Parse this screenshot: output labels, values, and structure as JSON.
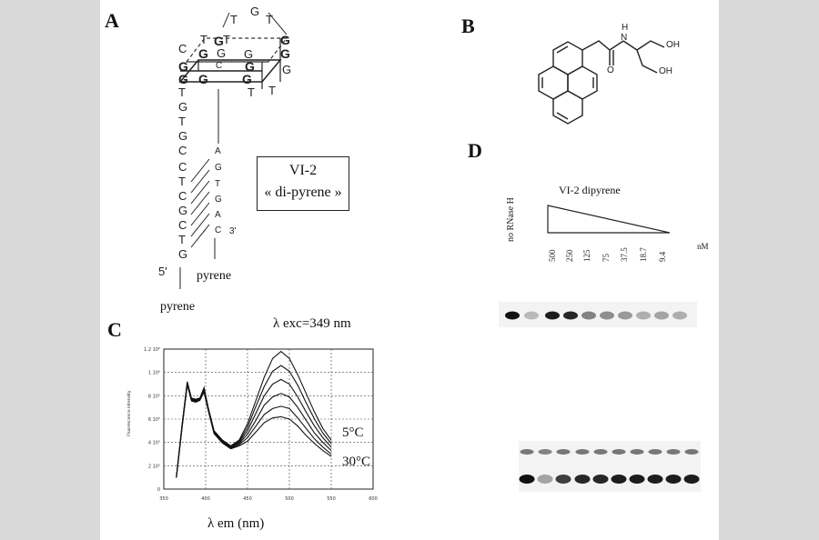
{
  "panels": {
    "a": "A",
    "b": "B",
    "c": "C",
    "d": "D"
  },
  "panel_a": {
    "loop_nts": [
      "T",
      "G",
      "T"
    ],
    "quartet_top": [
      "T",
      "G",
      "T",
      "G"
    ],
    "quartet_mid": [
      "G",
      "G",
      "G",
      "G"
    ],
    "quartet_low": [
      "G",
      "C",
      "G",
      "G"
    ],
    "quartet_bot": [
      "G",
      "G",
      "G"
    ],
    "left_extra": "C",
    "right_g": "G",
    "left_strand": [
      "T",
      "G",
      "T",
      "G",
      "C",
      "C",
      "T",
      "C",
      "G",
      "C",
      "T",
      "G"
    ],
    "right_strand": [
      "A",
      "G",
      "T",
      "G",
      "A",
      "C"
    ],
    "tt": [
      "T",
      "T"
    ],
    "five_prime": "5'",
    "three_prime": "3'",
    "pyrene_right": "pyrene",
    "pyrene_left": "pyrene",
    "box_line1": "VI-2",
    "box_line2": "« di-pyrene »"
  },
  "panel_b": {
    "oh1": "OH",
    "oh2": "OH",
    "n": "N",
    "h": "H",
    "o": "O"
  },
  "panel_c": {
    "excitation": "λ exc=349 nm",
    "temp_high": "5°C",
    "temp_low": "30°C",
    "xlabel": "λ em (nm)",
    "ylabel": "Fluorescence intensity"
  },
  "panel_d": {
    "control_label": "no RNase H",
    "title": "VI-2 dipyrene",
    "concentrations": [
      "500",
      "250",
      "125",
      "75",
      "37.5",
      "18.7",
      "9.4"
    ],
    "unit": "nM"
  },
  "chart_data": {
    "type": "line",
    "title": "λ exc=349 nm",
    "xlabel": "λ em (nm)",
    "ylabel": "Fluorescence intensity",
    "xlim": [
      350,
      600
    ],
    "ylim": [
      0,
      1200000
    ],
    "x_ticks": [
      "350",
      "400",
      "450",
      "500",
      "550",
      "600"
    ],
    "y_ticks": [
      "0",
      "2 10⁵",
      "4 10⁵",
      "6 10⁵",
      "8 10⁵",
      "1 10⁶",
      "1.2 10⁶"
    ],
    "grid": true,
    "annotations": [
      "5°C",
      "30°C"
    ],
    "x": [
      365,
      372,
      378,
      383,
      388,
      393,
      398,
      403,
      410,
      420,
      430,
      440,
      450,
      460,
      470,
      480,
      490,
      500,
      510,
      520,
      530,
      540,
      550
    ],
    "series": [
      {
        "values": [
          100000,
          560000,
          920000,
          780000,
          770000,
          780000,
          870000,
          700000,
          500000,
          420000,
          370000,
          420000,
          560000,
          760000,
          960000,
          1120000,
          1180000,
          1120000,
          980000,
          820000,
          660000,
          520000,
          420000
        ]
      },
      {
        "values": [
          100000,
          555000,
          915000,
          775000,
          765000,
          778000,
          862000,
          695000,
          495000,
          415000,
          365000,
          410000,
          530000,
          710000,
          880000,
          1010000,
          1060000,
          1010000,
          890000,
          740000,
          600000,
          480000,
          390000
        ]
      },
      {
        "values": [
          100000,
          550000,
          910000,
          770000,
          760000,
          775000,
          855000,
          690000,
          490000,
          410000,
          360000,
          400000,
          500000,
          650000,
          800000,
          900000,
          940000,
          900000,
          790000,
          660000,
          540000,
          440000,
          360000
        ]
      },
      {
        "values": [
          100000,
          545000,
          905000,
          765000,
          755000,
          770000,
          848000,
          685000,
          485000,
          405000,
          355000,
          390000,
          470000,
          590000,
          720000,
          790000,
          820000,
          790000,
          700000,
          590000,
          480000,
          400000,
          330000
        ]
      },
      {
        "values": [
          100000,
          540000,
          900000,
          760000,
          750000,
          765000,
          840000,
          680000,
          480000,
          400000,
          350000,
          380000,
          440000,
          540000,
          640000,
          690000,
          710000,
          690000,
          610000,
          520000,
          430000,
          360000,
          300000
        ]
      },
      {
        "values": [
          100000,
          535000,
          895000,
          755000,
          745000,
          760000,
          832000,
          675000,
          475000,
          395000,
          345000,
          370000,
          410000,
          490000,
          570000,
          610000,
          620000,
          600000,
          540000,
          460000,
          390000,
          330000,
          280000
        ]
      }
    ]
  },
  "gel": {
    "top_band_intensity": [
      1.0,
      0.25,
      0.95,
      0.9,
      0.5,
      0.45,
      0.4,
      0.3,
      0.35,
      0.3
    ],
    "bottom_upper_intensity": [
      0.55,
      0.5,
      0.55,
      0.55,
      0.55,
      0.55,
      0.55,
      0.55,
      0.55,
      0.55
    ],
    "bottom_lower_intensity": [
      1.0,
      0.35,
      0.8,
      0.9,
      0.9,
      0.95,
      0.95,
      0.95,
      0.95,
      0.95
    ]
  }
}
